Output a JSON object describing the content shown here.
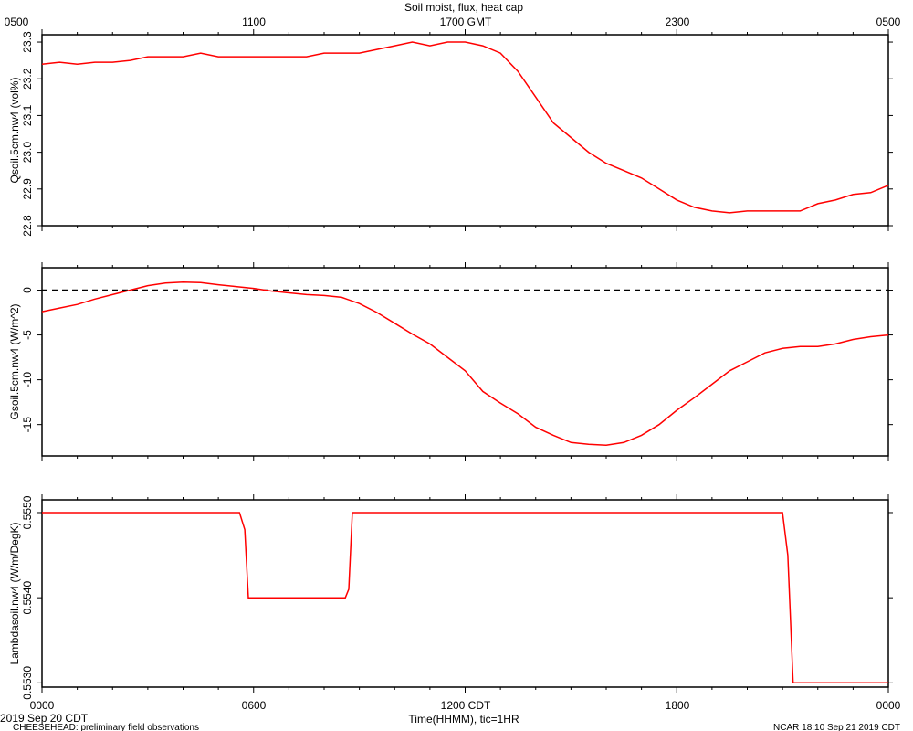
{
  "title": "Soil moist, flux, heat cap",
  "top_axis_ticks": [
    "0500",
    "1100",
    "1700 GMT",
    "2300",
    "0500"
  ],
  "bottom_axis_ticks": [
    "0000",
    "0600",
    "1200 CDT",
    "1800",
    "0000"
  ],
  "x_label": "Time(HHMM), tic=1HR",
  "footer_left_date": "2019 Sep 20 CDT",
  "footer_left_note": "CHEESEHEAD: preliminary field observations",
  "footer_right": "NCAR 18:10 Sep 21 2019 CDT",
  "colors": {
    "series": "#ff0000",
    "axes": "#000000",
    "zero_line": "#000000"
  },
  "chart_data": [
    {
      "type": "line",
      "ylabel": "Qsoil.5cm.nw4 (vol%)",
      "ylim": [
        22.8,
        23.32
      ],
      "yticks": [
        "22.8",
        "22.9",
        "23.0",
        "23.1",
        "23.2",
        "23.3"
      ],
      "ytick_values": [
        22.8,
        22.9,
        23.0,
        23.1,
        23.2,
        23.3
      ],
      "x": [
        0,
        0.5,
        1,
        1.5,
        2,
        2.5,
        3,
        3.5,
        4,
        4.5,
        5,
        5.5,
        6,
        6.5,
        7,
        7.5,
        8,
        8.5,
        9,
        9.5,
        10,
        10.5,
        11,
        11.5,
        12,
        12.5,
        13,
        13.5,
        14,
        14.5,
        15,
        15.5,
        16,
        16.5,
        17,
        17.5,
        18,
        18.5,
        19,
        19.5,
        20,
        20.5,
        21,
        21.5,
        22,
        22.5,
        23,
        23.5,
        24
      ],
      "y": [
        23.24,
        23.245,
        23.24,
        23.245,
        23.245,
        23.25,
        23.26,
        23.26,
        23.26,
        23.27,
        23.26,
        23.26,
        23.26,
        23.26,
        23.26,
        23.26,
        23.27,
        23.27,
        23.27,
        23.28,
        23.29,
        23.3,
        23.29,
        23.3,
        23.3,
        23.29,
        23.27,
        23.22,
        23.15,
        23.08,
        23.04,
        23.0,
        22.97,
        22.95,
        22.93,
        22.9,
        22.87,
        22.85,
        22.84,
        22.835,
        22.84,
        22.84,
        22.84,
        22.84,
        22.86,
        22.87,
        22.885,
        22.89,
        22.91
      ]
    },
    {
      "type": "line",
      "ylabel": "Gsoil.5cm.nw4 (W/m^2)",
      "ylim": [
        -18.5,
        2.5
      ],
      "yticks": [
        "-15",
        "-10",
        "-5",
        "0"
      ],
      "ytick_values": [
        -15,
        -10,
        -5,
        0
      ],
      "zero_line": true,
      "x": [
        0,
        0.5,
        1,
        1.5,
        2,
        2.5,
        3,
        3.5,
        4,
        4.5,
        5,
        5.5,
        6,
        6.5,
        7,
        7.5,
        8,
        8.5,
        9,
        9.5,
        10,
        10.5,
        11,
        11.5,
        12,
        12.5,
        13,
        13.5,
        14,
        14.5,
        15,
        15.5,
        16,
        16.5,
        17,
        17.5,
        18,
        18.5,
        19,
        19.5,
        20,
        20.5,
        21,
        21.5,
        22,
        22.5,
        23,
        23.5,
        24
      ],
      "y": [
        -2.4,
        -2.0,
        -1.6,
        -1.0,
        -0.5,
        0.0,
        0.5,
        0.8,
        0.9,
        0.85,
        0.6,
        0.4,
        0.2,
        -0.1,
        -0.3,
        -0.5,
        -0.6,
        -0.8,
        -1.5,
        -2.5,
        -3.7,
        -4.9,
        -6.0,
        -7.5,
        -9.0,
        -11.3,
        -12.6,
        -13.8,
        -15.3,
        -16.2,
        -17.0,
        -17.2,
        -17.3,
        -17.0,
        -16.2,
        -15.0,
        -13.4,
        -12.0,
        -10.5,
        -9.0,
        -8.0,
        -7.0,
        -6.5,
        -6.3,
        -6.3,
        -6.0,
        -5.5,
        -5.2,
        -5.0
      ]
    },
    {
      "type": "line",
      "ylabel": "Lambdasoil.nw4 (W/m/DegK)",
      "ylim": [
        0.55295,
        0.55515
      ],
      "yticks": [
        "0.5530",
        "0.5540",
        "0.5550"
      ],
      "ytick_values": [
        0.553,
        0.554,
        0.555
      ],
      "x": [
        0,
        5.6,
        5.75,
        5.85,
        8.6,
        8.7,
        8.8,
        21.0,
        21.15,
        21.3,
        24
      ],
      "y": [
        0.555,
        0.555,
        0.5548,
        0.554,
        0.554,
        0.5541,
        0.555,
        0.555,
        0.5545,
        0.553,
        0.553
      ]
    }
  ]
}
